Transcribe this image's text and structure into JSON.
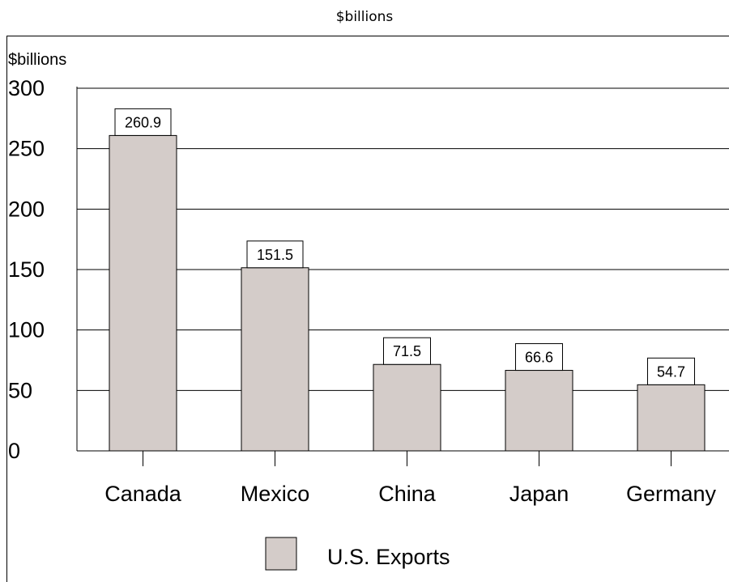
{
  "chart_data": {
    "type": "bar",
    "title": "$billions",
    "ylabel": "$billions",
    "xlabel": "",
    "categories": [
      "Canada",
      "Mexico",
      "China",
      "Japan",
      "Germany"
    ],
    "series": [
      {
        "name": "U.S. Exports",
        "values": [
          260.9,
          151.5,
          71.5,
          66.6,
          54.7
        ],
        "color": "#d4ccc9"
      }
    ],
    "value_labels": [
      "260.9",
      "151.5",
      "71.5",
      "66.6",
      "54.7"
    ],
    "ylim": [
      0,
      300
    ],
    "yticks": [
      0,
      50,
      100,
      150,
      200,
      250,
      300
    ],
    "ytick_labels": [
      "0",
      "50",
      "100",
      "150",
      "200",
      "250",
      "300"
    ],
    "grid": true,
    "legend_position": "bottom-center"
  }
}
